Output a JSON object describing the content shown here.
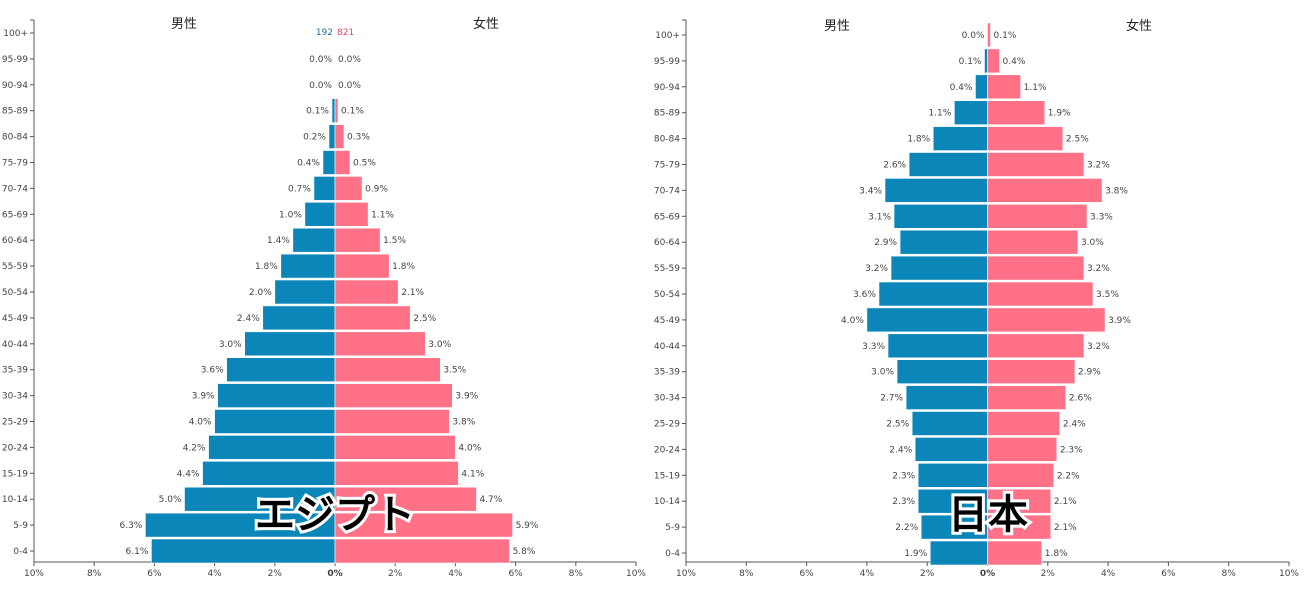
{
  "colors": {
    "male": "#0b86b8",
    "female": "#ff7186",
    "axis": "#555555",
    "male_num": "#1f6fa8",
    "female_num": "#e34a5e"
  },
  "chart_data": [
    {
      "type": "bar",
      "caption": "エジプト",
      "male_label": "男性",
      "female_label": "女性",
      "extra_male_text": "192",
      "extra_female_text": "821",
      "categories": [
        "100+",
        "95-99",
        "90-94",
        "85-89",
        "80-84",
        "75-79",
        "70-74",
        "65-69",
        "60-64",
        "55-59",
        "50-54",
        "45-49",
        "40-44",
        "35-39",
        "30-34",
        "25-29",
        "20-24",
        "15-19",
        "10-14",
        "5-9",
        "0-4"
      ],
      "series": [
        {
          "name": "男性",
          "values": [
            0.0,
            0.0,
            0.0,
            0.1,
            0.2,
            0.4,
            0.7,
            1.0,
            1.4,
            1.8,
            2.0,
            2.4,
            3.0,
            3.6,
            3.9,
            4.0,
            4.2,
            4.4,
            5.0,
            6.3,
            6.1
          ]
        },
        {
          "name": "女性",
          "values": [
            0.0,
            0.0,
            0.0,
            0.1,
            0.3,
            0.5,
            0.9,
            1.1,
            1.5,
            1.8,
            2.1,
            2.5,
            3.0,
            3.5,
            3.9,
            3.8,
            4.0,
            4.1,
            4.7,
            5.9,
            5.8
          ]
        }
      ],
      "male_value_labels": [
        "",
        "0.0%",
        "0.0%",
        "0.1%",
        "0.2%",
        "0.4%",
        "0.7%",
        "1.0%",
        "1.4%",
        "1.8%",
        "2.0%",
        "2.4%",
        "3.0%",
        "3.6%",
        "3.9%",
        "4.0%",
        "4.2%",
        "4.4%",
        "5.0%",
        "6.3%",
        "6.1%"
      ],
      "female_value_labels": [
        "",
        "0.0%",
        "0.0%",
        "0.1%",
        "0.3%",
        "0.5%",
        "0.9%",
        "1.1%",
        "1.5%",
        "1.8%",
        "2.1%",
        "2.5%",
        "3.0%",
        "3.5%",
        "3.9%",
        "3.8%",
        "4.0%",
        "4.1%",
        "4.7%",
        "5.9%",
        "5.8%"
      ],
      "x_ticks": [
        "10%",
        "8%",
        "6%",
        "4%",
        "2%",
        "0%",
        "2%",
        "4%",
        "6%",
        "8%",
        "10%"
      ],
      "xlim": [
        -10,
        10
      ]
    },
    {
      "type": "bar",
      "caption": "日本",
      "male_label": "男性",
      "female_label": "女性",
      "categories": [
        "100+",
        "95-99",
        "90-94",
        "85-89",
        "80-84",
        "75-79",
        "70-74",
        "65-69",
        "60-64",
        "55-59",
        "50-54",
        "45-49",
        "40-44",
        "35-39",
        "30-34",
        "25-29",
        "20-24",
        "15-19",
        "10-14",
        "5-9",
        "0-4"
      ],
      "series": [
        {
          "name": "男性",
          "values": [
            0.0,
            0.1,
            0.4,
            1.1,
            1.8,
            2.6,
            3.4,
            3.1,
            2.9,
            3.2,
            3.6,
            4.0,
            3.3,
            3.0,
            2.7,
            2.5,
            2.4,
            2.3,
            2.3,
            2.2,
            1.9
          ]
        },
        {
          "name": "女性",
          "values": [
            0.1,
            0.4,
            1.1,
            1.9,
            2.5,
            3.2,
            3.8,
            3.3,
            3.0,
            3.2,
            3.5,
            3.9,
            3.2,
            2.9,
            2.6,
            2.4,
            2.3,
            2.2,
            2.1,
            2.1,
            1.8
          ]
        }
      ],
      "male_value_labels": [
        "0.0%",
        "0.1%",
        "0.4%",
        "1.1%",
        "1.8%",
        "2.6%",
        "3.4%",
        "3.1%",
        "2.9%",
        "3.2%",
        "3.6%",
        "4.0%",
        "3.3%",
        "3.0%",
        "2.7%",
        "2.5%",
        "2.4%",
        "2.3%",
        "2.3%",
        "2.2%",
        "1.9%"
      ],
      "female_value_labels": [
        "0.1%",
        "0.4%",
        "1.1%",
        "1.9%",
        "2.5%",
        "3.2%",
        "3.8%",
        "3.3%",
        "3.0%",
        "3.2%",
        "3.5%",
        "3.9%",
        "3.2%",
        "2.9%",
        "2.6%",
        "2.4%",
        "2.3%",
        "2.2%",
        "2.1%",
        "2.1%",
        "1.8%"
      ],
      "x_ticks": [
        "10%",
        "8%",
        "6%",
        "4%",
        "2%",
        "0%",
        "2%",
        "4%",
        "6%",
        "8%",
        "10%"
      ],
      "xlim": [
        -10,
        10
      ]
    }
  ]
}
